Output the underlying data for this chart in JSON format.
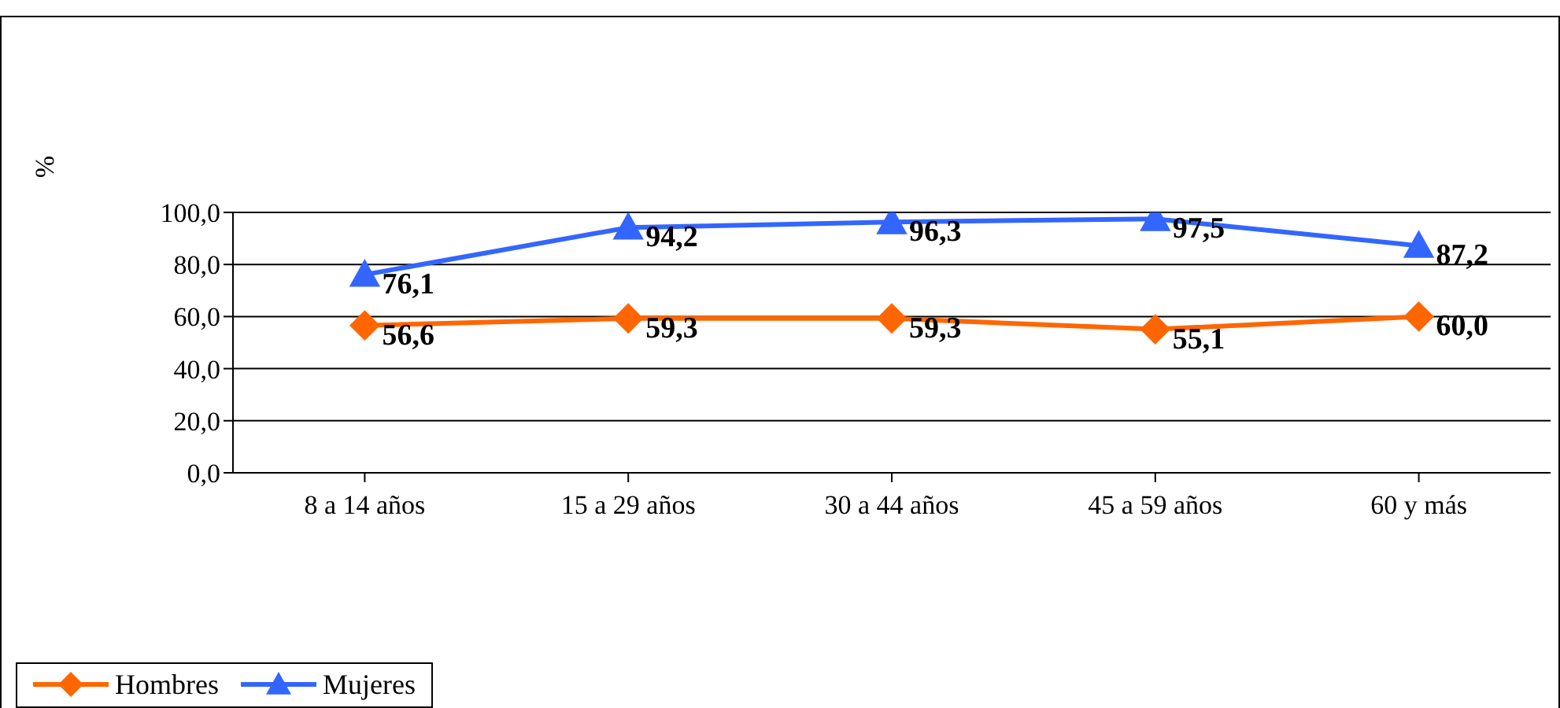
{
  "chart_data": {
    "type": "line",
    "ylabel": "%",
    "categories": [
      "8 a 14 años",
      "15 a 29 años",
      "30 a 44 años",
      "45 a 59 años",
      "60 y más"
    ],
    "series": [
      {
        "name": "Hombres",
        "color": "#ff6600",
        "marker": "diamond",
        "values": [
          56.6,
          59.3,
          59.3,
          55.1,
          60.0
        ],
        "value_labels": [
          "56,6",
          "59,3",
          "59,3",
          "55,1",
          "60,0"
        ]
      },
      {
        "name": "Mujeres",
        "color": "#3366ff",
        "marker": "triangle",
        "values": [
          76.1,
          94.2,
          96.3,
          97.5,
          87.2
        ],
        "value_labels": [
          "76,1",
          "94,2",
          "96,3",
          "97,5",
          "87,2"
        ]
      }
    ],
    "ylim": [
      0,
      100
    ],
    "yticks": [
      {
        "value": 0,
        "label": "0,0"
      },
      {
        "value": 20,
        "label": "20,0"
      },
      {
        "value": 40,
        "label": "40,0"
      },
      {
        "value": 60,
        "label": "60,0"
      },
      {
        "value": 80,
        "label": "80,0"
      },
      {
        "value": 100,
        "label": "100,0"
      }
    ],
    "grid": "y",
    "legend": "bottom",
    "line_style": "solid"
  }
}
